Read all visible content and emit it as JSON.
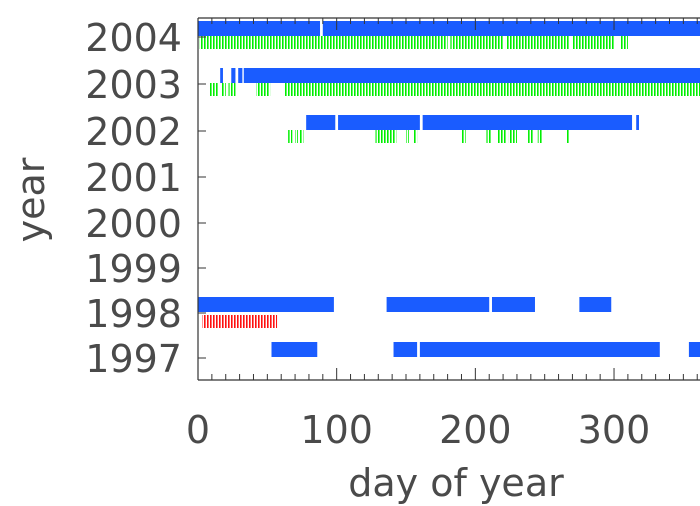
{
  "chart_data": {
    "type": "timeline",
    "xlabel": "day of year",
    "ylabel": "year",
    "xlim": [
      0,
      365
    ],
    "x_ticks": [
      "0",
      "100",
      "200",
      "300"
    ],
    "categories": [
      "2004",
      "2003",
      "2002",
      "2001",
      "2000",
      "1999",
      "1998",
      "1997"
    ],
    "colors": {
      "blue": "#1a5cff",
      "green": "#00ee00",
      "red": "#ff1111",
      "axis": "#333333",
      "text": "#4a4a4a"
    },
    "series": [
      {
        "year": "2004",
        "kind": "blue",
        "intervals": [
          [
            0,
            88
          ],
          [
            90,
            365
          ]
        ]
      },
      {
        "year": "2004",
        "kind": "green",
        "intervals": [
          [
            1,
            180
          ],
          [
            182,
            220
          ],
          [
            222,
            268
          ],
          [
            270,
            300
          ],
          [
            305,
            310
          ]
        ]
      },
      {
        "year": "2003",
        "kind": "blue",
        "intervals": [
          [
            16,
            18
          ],
          [
            24,
            27
          ],
          [
            29,
            32
          ],
          [
            33,
            365
          ]
        ]
      },
      {
        "year": "2003",
        "kind": "green",
        "intervals": [
          [
            8,
            15
          ],
          [
            17,
            20
          ],
          [
            22,
            27
          ],
          [
            42,
            52
          ],
          [
            62,
            365
          ]
        ]
      },
      {
        "year": "2002",
        "kind": "blue",
        "intervals": [
          [
            78,
            99
          ],
          [
            101,
            160
          ],
          [
            162,
            313
          ],
          [
            316,
            318
          ]
        ]
      },
      {
        "year": "2002",
        "kind": "green",
        "intervals": [
          [
            65,
            68
          ],
          [
            70,
            72
          ],
          [
            73,
            76
          ],
          [
            128,
            143
          ],
          [
            150,
            152
          ],
          [
            155,
            158
          ],
          [
            190,
            193
          ],
          [
            208,
            212
          ],
          [
            216,
            222
          ],
          [
            224,
            230
          ],
          [
            238,
            242
          ],
          [
            245,
            248
          ],
          [
            266,
            268
          ]
        ]
      },
      {
        "year": "1998",
        "kind": "blue",
        "intervals": [
          [
            0,
            98
          ],
          [
            136,
            210
          ],
          [
            212,
            243
          ],
          [
            275,
            298
          ]
        ]
      },
      {
        "year": "1998",
        "kind": "red",
        "intervals": [
          [
            3,
            57
          ]
        ]
      },
      {
        "year": "1997",
        "kind": "blue",
        "intervals": [
          [
            53,
            86
          ],
          [
            141,
            158
          ],
          [
            160,
            333
          ],
          [
            354,
            365
          ]
        ]
      }
    ]
  }
}
